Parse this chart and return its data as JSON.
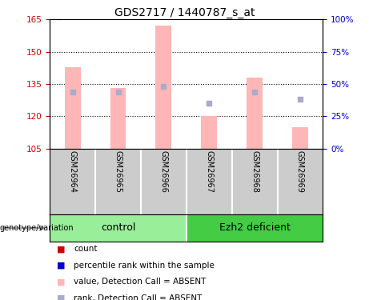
{
  "title": "GDS2717 / 1440787_s_at",
  "samples": [
    "GSM26964",
    "GSM26965",
    "GSM26966",
    "GSM26967",
    "GSM26968",
    "GSM26969"
  ],
  "bar_values": [
    143,
    133,
    162,
    120,
    138,
    115
  ],
  "rank_values": [
    44,
    44,
    48,
    35,
    44,
    38
  ],
  "bar_base": 105,
  "ylim_left": [
    105,
    165
  ],
  "ylim_right": [
    0,
    100
  ],
  "yticks_left": [
    105,
    120,
    135,
    150,
    165
  ],
  "yticks_right": [
    0,
    25,
    50,
    75,
    100
  ],
  "ytick_labels_right": [
    "0%",
    "25%",
    "50%",
    "75%",
    "100%"
  ],
  "grid_values": [
    120,
    135,
    150
  ],
  "bar_color": "#ffb6b6",
  "rank_color": "#aaaacc",
  "left_axis_color": "#cc0000",
  "right_axis_color": "#0000cc",
  "bg_color": "#ffffff",
  "label_bg": "#cccccc",
  "group_bg_left": "#99ee99",
  "group_bg_right": "#44cc44",
  "legend_items": [
    {
      "label": "count",
      "color": "#cc0000"
    },
    {
      "label": "percentile rank within the sample",
      "color": "#0000cc"
    },
    {
      "label": "value, Detection Call = ABSENT",
      "color": "#ffb6b6"
    },
    {
      "label": "rank, Detection Call = ABSENT",
      "color": "#aaaacc"
    }
  ]
}
